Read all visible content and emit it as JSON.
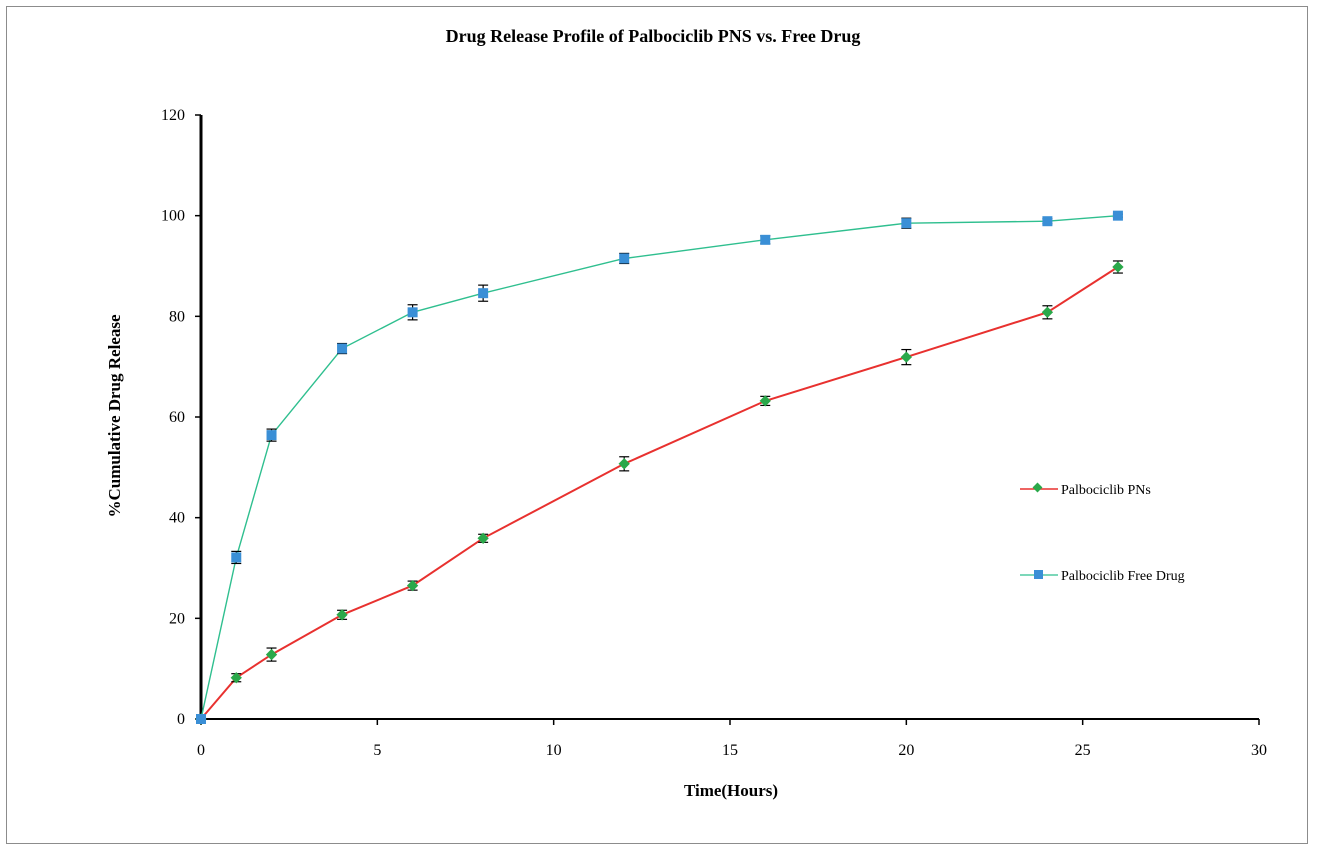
{
  "chart_data": {
    "type": "line",
    "title": "Drug Release Profile of Palbociclib  PNS vs. Free Drug",
    "xlabel": "Time(Hours)",
    "ylabel": "%Cumulative Drug Release",
    "xlim": [
      0,
      30
    ],
    "ylim": [
      0,
      120
    ],
    "xticks": [
      0,
      5,
      10,
      15,
      20,
      25,
      30
    ],
    "yticks": [
      0,
      20,
      40,
      60,
      80,
      100,
      120
    ],
    "grid": false,
    "legend_position": "right",
    "series": [
      {
        "name": "Palbociclib PNs",
        "line_color": "#e8312f",
        "marker_color": "#2aa84a",
        "marker": "diamond",
        "x": [
          0,
          1,
          2,
          4,
          6,
          8,
          12,
          16,
          20,
          24,
          26
        ],
        "values": [
          0,
          8.2,
          12.8,
          20.7,
          26.5,
          35.9,
          50.7,
          63.2,
          71.9,
          80.8,
          89.8
        ],
        "errors": [
          0,
          0.8,
          1.3,
          0.9,
          0.9,
          0.8,
          1.4,
          0.9,
          1.5,
          1.3,
          1.2
        ]
      },
      {
        "name": "Palbociclib Free Drug",
        "line_color": "#2fbf8f",
        "marker_color": "#3a8fd6",
        "marker": "square",
        "x": [
          0,
          1,
          2,
          4,
          6,
          8,
          12,
          16,
          20,
          24,
          26
        ],
        "values": [
          0,
          32.1,
          56.4,
          73.6,
          80.8,
          84.6,
          91.5,
          95.2,
          98.5,
          98.9,
          100
        ],
        "errors": [
          0,
          1.2,
          1.2,
          1.0,
          1.5,
          1.6,
          1.0,
          0.8,
          1.0,
          0.5,
          0.3
        ]
      }
    ]
  }
}
